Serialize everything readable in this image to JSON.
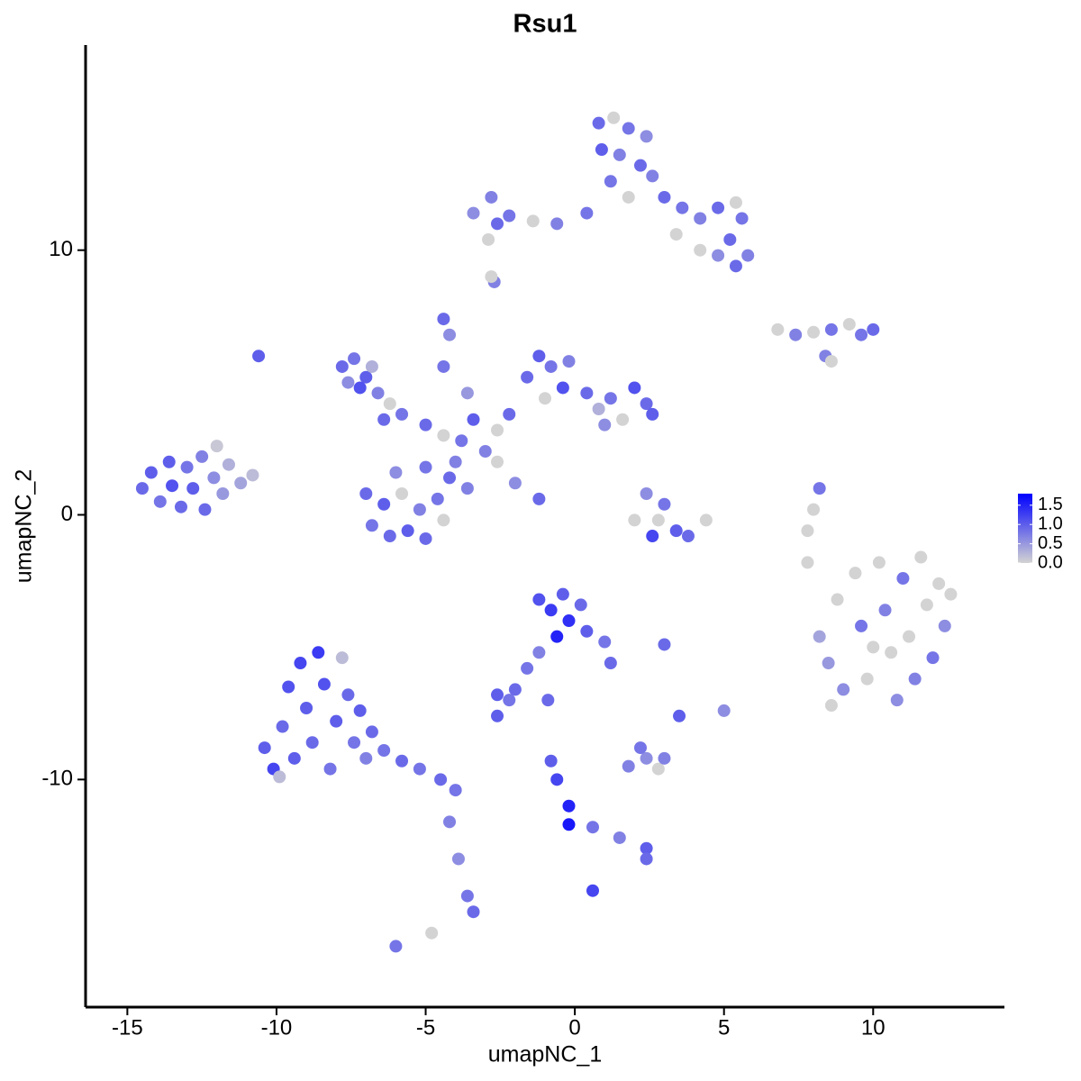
{
  "chart_data": {
    "type": "scatter",
    "title": "Rsu1",
    "x_label": "umapNC_1",
    "y_label": "umapNC_2",
    "xlim": [
      -16.4,
      14.4
    ],
    "ylim": [
      -18.6,
      17.75
    ],
    "xticks": [
      -15,
      -10,
      -5,
      0,
      5,
      10
    ],
    "yticks": [
      -10,
      0,
      10
    ],
    "colorbar": {
      "lim": [
        0,
        1.8
      ],
      "ticks": [
        {
          "value": 0,
          "label": "0.0"
        },
        {
          "value": 0.5,
          "label": "0.5"
        },
        {
          "value": 1,
          "label": "1.0"
        },
        {
          "value": 1.5,
          "label": "1.5"
        }
      ],
      "low": "#d3d3d3",
      "high": "#0000ff"
    },
    "x": [
      -14.5,
      -14.2,
      -13.9,
      -13.6,
      -13.5,
      -13.2,
      -13.0,
      -12.8,
      -12.5,
      -12.4,
      -12.1,
      -11.8,
      -11.6,
      -11.2,
      -10.8,
      -12.0,
      -10.4,
      -10.1,
      -9.8,
      -9.6,
      -9.4,
      -9.2,
      -9.0,
      -8.8,
      -8.6,
      -8.4,
      -8.2,
      -8.0,
      -7.8,
      -7.6,
      -7.4,
      -7.2,
      -7.0,
      -6.8,
      -6.4,
      -5.8,
      -5.2,
      -4.5,
      -4.0,
      -9.9,
      -4.2,
      -3.9,
      -3.6,
      -3.4,
      -6.0,
      -4.8,
      -7.8,
      -7.4,
      -7.0,
      -6.6,
      -6.2,
      -7.2,
      -6.8,
      -5.8,
      -7.6,
      -6.4,
      -5.0,
      -4.4,
      -3.8,
      -3.4,
      -3.0,
      -2.6,
      -2.2,
      -4.2,
      -4.4,
      -3.6,
      -1.6,
      -1.2,
      -0.8,
      -0.4,
      -1.0,
      -0.2,
      0.4,
      0.8,
      1.2,
      1.6,
      2.0,
      2.4,
      2.6,
      1.0,
      -7.0,
      -6.8,
      -6.4,
      -6.2,
      -5.8,
      -5.6,
      -5.2,
      -5.0,
      -4.6,
      -4.4,
      -4.2,
      -5.0,
      -6.0,
      -3.6,
      -4.0,
      -2.0,
      -1.2,
      -4.4,
      -2.6,
      0.8,
      1.3,
      1.8,
      2.4,
      0.9,
      1.5,
      2.2,
      1.2,
      1.8,
      2.6,
      3.0,
      3.6,
      4.2,
      4.8,
      5.4,
      5.6,
      5.2,
      5.8,
      5.4,
      4.8,
      4.2,
      3.4,
      0.4,
      -0.6,
      -1.4,
      -2.2,
      -2.8,
      -2.6,
      -3.4,
      -2.9,
      -2.7,
      8.2,
      8.5,
      8.8,
      9.0,
      9.4,
      9.6,
      9.8,
      10.2,
      10.4,
      10.6,
      10.8,
      11.0,
      11.2,
      11.4,
      11.6,
      11.8,
      12.0,
      12.2,
      12.4,
      12.6,
      8.6,
      10.0,
      2.4,
      2.8,
      3.0,
      3.4,
      2.6,
      3.8,
      4.4,
      2.0,
      -1.2,
      -0.8,
      -0.4,
      -0.2,
      0.2,
      0.4,
      -0.6,
      1.0,
      1.2,
      -1.2,
      -1.6,
      -2.0,
      -2.6,
      -2.2,
      -2.6,
      -0.9,
      -0.8,
      -0.6,
      -0.2,
      -0.2,
      0.6,
      1.5,
      2.4,
      2.4,
      0.6,
      1.8,
      2.4,
      2.8,
      3.0,
      2.2,
      3.0,
      5.0,
      3.5,
      -2.8,
      -10.6,
      6.8,
      7.4,
      8.0,
      8.6,
      9.2,
      9.6,
      10.0,
      8.4,
      8.6,
      8.2,
      8.0,
      7.8,
      7.8
    ],
    "y": [
      1.0,
      1.6,
      0.5,
      2.0,
      1.1,
      0.3,
      1.8,
      1.0,
      2.2,
      0.2,
      1.4,
      0.8,
      1.9,
      1.2,
      1.5,
      2.6,
      -8.8,
      -9.6,
      -8.0,
      -6.5,
      -9.2,
      -5.6,
      -7.3,
      -8.6,
      -5.2,
      -6.4,
      -9.6,
      -7.8,
      -5.4,
      -6.8,
      -8.6,
      -7.4,
      -9.2,
      -8.2,
      -8.9,
      -9.3,
      -9.6,
      -10.0,
      -10.4,
      -9.9,
      -11.6,
      -13.0,
      -14.4,
      -15.0,
      -16.3,
      -15.8,
      5.6,
      5.9,
      5.2,
      4.6,
      4.2,
      4.8,
      5.6,
      3.8,
      5.0,
      3.6,
      3.4,
      3.0,
      2.8,
      3.6,
      2.4,
      3.2,
      3.8,
      6.8,
      7.4,
      4.6,
      5.2,
      6.0,
      5.6,
      4.8,
      4.4,
      5.8,
      4.6,
      4.0,
      4.4,
      3.6,
      4.8,
      4.2,
      3.8,
      3.4,
      0.8,
      -0.4,
      0.4,
      -0.8,
      0.8,
      -0.6,
      0.2,
      -0.9,
      0.6,
      -0.2,
      1.4,
      1.8,
      1.6,
      1.0,
      2.0,
      1.2,
      0.6,
      5.6,
      2.0,
      14.8,
      15.0,
      14.6,
      14.3,
      13.8,
      13.6,
      13.2,
      12.6,
      12.0,
      12.8,
      12.0,
      11.6,
      11.2,
      11.6,
      11.8,
      11.2,
      10.4,
      9.8,
      9.4,
      9.8,
      10.0,
      10.6,
      11.4,
      11.0,
      11.1,
      11.3,
      12.0,
      11.0,
      11.4,
      10.4,
      8.8,
      -4.6,
      -5.6,
      -3.2,
      -6.6,
      -2.2,
      -4.2,
      -6.2,
      -1.8,
      -3.6,
      -5.2,
      -7.0,
      -2.4,
      -4.6,
      -6.2,
      -1.6,
      -3.4,
      -5.4,
      -2.6,
      -4.2,
      -3.0,
      -7.2,
      -5.0,
      0.8,
      -0.2,
      0.4,
      -0.6,
      -0.8,
      -0.8,
      -0.2,
      -0.2,
      -3.2,
      -3.6,
      -3.0,
      -4.0,
      -3.4,
      -4.4,
      -4.6,
      -4.8,
      -5.6,
      -5.2,
      -5.8,
      -6.6,
      -6.8,
      -7.0,
      -7.6,
      -7.0,
      -9.3,
      -10.0,
      -11.0,
      -11.7,
      -11.8,
      -12.2,
      -12.6,
      -13.0,
      -14.2,
      -9.5,
      -9.2,
      -9.6,
      -9.2,
      -8.8,
      -4.9,
      -7.4,
      -7.6,
      9.0,
      6.0,
      7.0,
      6.8,
      6.9,
      7.0,
      7.2,
      6.8,
      7.0,
      6.0,
      5.8,
      1.0,
      0.2,
      -0.6,
      -1.8
    ],
    "values": [
      0.9,
      1.0,
      0.8,
      1.0,
      1.1,
      0.9,
      0.8,
      1.0,
      0.7,
      0.9,
      0.6,
      0.5,
      0.3,
      0.4,
      0.2,
      0.1,
      1.0,
      1.2,
      0.9,
      1.1,
      1.0,
      1.2,
      1.0,
      0.9,
      1.3,
      1.1,
      0.8,
      1.0,
      0.2,
      0.9,
      0.8,
      1.0,
      0.7,
      0.9,
      0.8,
      0.9,
      0.8,
      0.9,
      0.8,
      0.2,
      0.7,
      0.6,
      0.8,
      0.9,
      0.8,
      0.0,
      0.9,
      0.8,
      1.0,
      0.7,
      0.0,
      1.1,
      0.3,
      0.8,
      0.6,
      0.9,
      0.9,
      0.0,
      0.8,
      1.0,
      0.7,
      0.0,
      0.9,
      0.6,
      0.9,
      0.5,
      0.9,
      1.0,
      0.8,
      1.1,
      0.0,
      0.7,
      0.9,
      0.3,
      0.8,
      0.0,
      1.1,
      0.9,
      1.0,
      0.6,
      0.9,
      0.8,
      1.0,
      0.9,
      0.0,
      1.0,
      0.7,
      0.9,
      0.8,
      0.0,
      0.9,
      0.8,
      0.6,
      0.7,
      0.7,
      0.6,
      0.9,
      0.8,
      0.0,
      0.9,
      0.0,
      0.8,
      0.6,
      1.0,
      0.7,
      0.9,
      0.8,
      0.0,
      0.7,
      0.9,
      0.8,
      0.7,
      0.9,
      0.0,
      0.8,
      0.9,
      0.7,
      0.9,
      0.6,
      0.0,
      0.0,
      0.8,
      0.7,
      0.0,
      0.8,
      0.7,
      0.9,
      0.6,
      0.0,
      0.7,
      0.4,
      0.5,
      0.0,
      0.6,
      0.0,
      0.8,
      0.0,
      0.0,
      0.7,
      0.0,
      0.6,
      0.8,
      0.0,
      0.7,
      0.0,
      0.0,
      0.8,
      0.0,
      0.6,
      0.0,
      0.0,
      0.0,
      0.6,
      0.0,
      0.8,
      1.0,
      1.2,
      0.9,
      0.0,
      0.0,
      1.1,
      1.3,
      1.0,
      1.4,
      0.9,
      1.0,
      1.5,
      0.8,
      0.9,
      0.7,
      0.8,
      0.9,
      1.0,
      0.8,
      1.0,
      0.9,
      1.0,
      1.2,
      1.5,
      1.6,
      0.8,
      0.7,
      1.0,
      0.9,
      1.2,
      0.7,
      0.6,
      0.0,
      0.7,
      0.8,
      0.9,
      0.6,
      1.0,
      0.0,
      1.0,
      0.0,
      0.7,
      0.0,
      0.8,
      0.0,
      0.8,
      0.9,
      0.7,
      0.0,
      0.8,
      0.0,
      0.0,
      0.0
    ]
  }
}
